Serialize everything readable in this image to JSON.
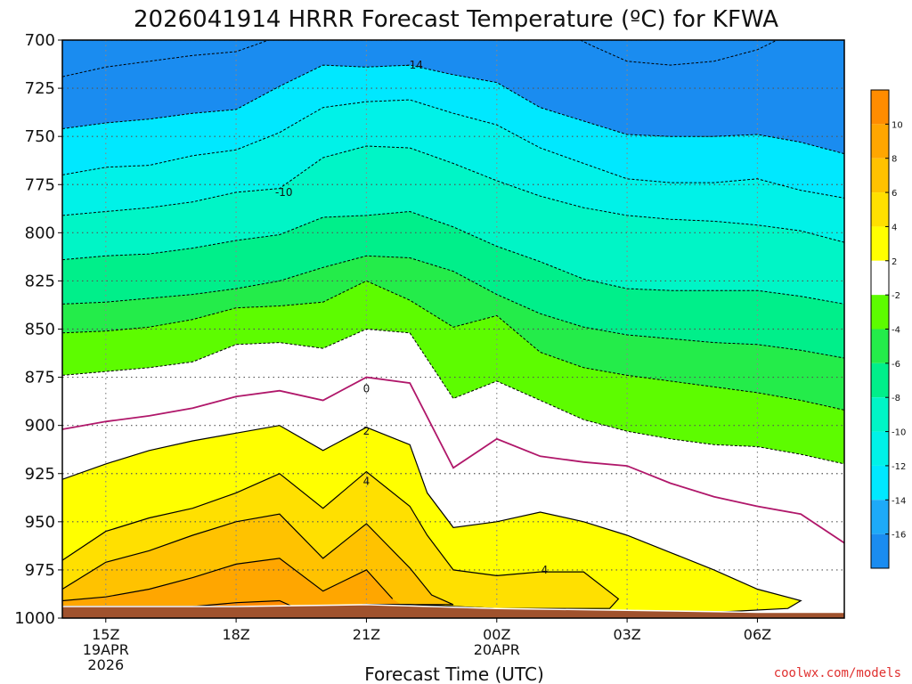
{
  "chart_data": {
    "type": "filled-contour",
    "title": "2026041914 HRRR Forecast Temperature (ºC) for KFWA",
    "xlabel": "Forecast Time (UTC)",
    "ylabel": "",
    "credit": "coolwx.com/models",
    "y_axis": {
      "range": [
        1000,
        700
      ],
      "ticks": [
        "700",
        "725",
        "750",
        "775",
        "800",
        "825",
        "850",
        "875",
        "900",
        "925",
        "950",
        "975",
        "1000"
      ]
    },
    "x_axis": {
      "range_hours": [
        0,
        18
      ],
      "ticks": [
        {
          "h": 1,
          "lines": [
            "15Z",
            "19APR",
            "2026"
          ]
        },
        {
          "h": 4,
          "lines": [
            "18Z"
          ]
        },
        {
          "h": 7,
          "lines": [
            "21Z"
          ]
        },
        {
          "h": 10,
          "lines": [
            "00Z",
            "20APR"
          ]
        },
        {
          "h": 13,
          "lines": [
            "03Z"
          ]
        },
        {
          "h": 16,
          "lines": [
            "06Z"
          ]
        }
      ],
      "grid_hours": [
        1,
        4,
        7,
        10,
        13,
        16
      ]
    },
    "grid": true,
    "colorbar": {
      "position": "right",
      "bins": [
        {
          "lo": -18,
          "hi": -16,
          "color": "#1a8cf0"
        },
        {
          "lo": -16,
          "hi": -14,
          "color": "#1eaaf8"
        },
        {
          "lo": -14,
          "hi": -12,
          "color": "#00e8ff"
        },
        {
          "lo": -12,
          "hi": -10,
          "color": "#00f2e8"
        },
        {
          "lo": -10,
          "hi": -8,
          "color": "#00f5c6"
        },
        {
          "lo": -8,
          "hi": -6,
          "color": "#00ef8a"
        },
        {
          "lo": -6,
          "hi": -4,
          "color": "#24ec4a"
        },
        {
          "lo": -4,
          "hi": -2,
          "color": "#5dfc00"
        },
        {
          "lo": -2,
          "hi": 2,
          "color": "#ffffff"
        },
        {
          "lo": 2,
          "hi": 4,
          "color": "#ffff00"
        },
        {
          "lo": 4,
          "hi": 6,
          "color": "#ffe000"
        },
        {
          "lo": 6,
          "hi": 8,
          "color": "#ffc200"
        },
        {
          "lo": 8,
          "hi": 10,
          "color": "#ffa600"
        },
        {
          "lo": 10,
          "hi": 12,
          "color": "#ff8c00"
        }
      ],
      "labels": [
        "-16",
        "-14",
        "-12",
        "-10",
        "-8",
        "-6",
        "-4",
        "-2",
        "2",
        "4",
        "6",
        "8",
        "10"
      ]
    },
    "ground_color": "#a0522d",
    "ground_top_pressure": [
      [
        0,
        994
      ],
      [
        4,
        994
      ],
      [
        7,
        993
      ],
      [
        10,
        995
      ],
      [
        13,
        996
      ],
      [
        16,
        997
      ],
      [
        18,
        997
      ]
    ],
    "contour_labels": [
      {
        "text": "-14",
        "h": 8.1,
        "p": 713
      },
      {
        "text": "-10",
        "h": 5.1,
        "p": 779
      },
      {
        "text": "0",
        "h": 7.0,
        "p": 881
      },
      {
        "text": "2",
        "h": 7.0,
        "p": 903
      },
      {
        "text": "4",
        "h": 7.0,
        "p": 929
      },
      {
        "text": "4",
        "h": 11.1,
        "p": 975
      }
    ],
    "isotherms": [
      {
        "value": -16,
        "points": [
          [
            0,
            719
          ],
          [
            1,
            714
          ],
          [
            2,
            711
          ],
          [
            3,
            708
          ],
          [
            4,
            706
          ],
          [
            5,
            698
          ],
          [
            6,
            690
          ],
          [
            7,
            690
          ]
        ]
      },
      {
        "value": -16,
        "points": [
          [
            11,
            690
          ],
          [
            12.2,
            703
          ],
          [
            13,
            711
          ],
          [
            14,
            713
          ],
          [
            15,
            711
          ],
          [
            16,
            705
          ],
          [
            17,
            694
          ],
          [
            17.3,
            690
          ]
        ]
      },
      {
        "value": -14,
        "points": [
          [
            0,
            746
          ],
          [
            1,
            743
          ],
          [
            2,
            741
          ],
          [
            3,
            738
          ],
          [
            4,
            736
          ],
          [
            5,
            724
          ],
          [
            6,
            713
          ],
          [
            7,
            714
          ],
          [
            8,
            713
          ],
          [
            9,
            718
          ],
          [
            10,
            722
          ],
          [
            11,
            735
          ],
          [
            12,
            742
          ],
          [
            13,
            749
          ],
          [
            14,
            750
          ],
          [
            15,
            750
          ],
          [
            16,
            749
          ],
          [
            17,
            753
          ],
          [
            18,
            759
          ]
        ]
      },
      {
        "value": -12,
        "points": [
          [
            0,
            770
          ],
          [
            1,
            766
          ],
          [
            2,
            765
          ],
          [
            3,
            760
          ],
          [
            4,
            757
          ],
          [
            5,
            748
          ],
          [
            6,
            735
          ],
          [
            7,
            732
          ],
          [
            8,
            731
          ],
          [
            9,
            738
          ],
          [
            10,
            744
          ],
          [
            11,
            756
          ],
          [
            12,
            764
          ],
          [
            13,
            772
          ],
          [
            14,
            774
          ],
          [
            15,
            774
          ],
          [
            16,
            772
          ],
          [
            17,
            778
          ],
          [
            18,
            782
          ]
        ]
      },
      {
        "value": -10,
        "points": [
          [
            0,
            791
          ],
          [
            1,
            789
          ],
          [
            2,
            787
          ],
          [
            3,
            784
          ],
          [
            4,
            779
          ],
          [
            5,
            777
          ],
          [
            6,
            761
          ],
          [
            7,
            755
          ],
          [
            8,
            756
          ],
          [
            9,
            764
          ],
          [
            10,
            773
          ],
          [
            11,
            781
          ],
          [
            12,
            787
          ],
          [
            13,
            791
          ],
          [
            14,
            793
          ],
          [
            15,
            794
          ],
          [
            16,
            796
          ],
          [
            17,
            799
          ],
          [
            18,
            805
          ]
        ]
      },
      {
        "value": -8,
        "points": [
          [
            0,
            814
          ],
          [
            1,
            812
          ],
          [
            2,
            811
          ],
          [
            3,
            808
          ],
          [
            4,
            804
          ],
          [
            5,
            801
          ],
          [
            6,
            792
          ],
          [
            7,
            791
          ],
          [
            8,
            789
          ],
          [
            9,
            797
          ],
          [
            10,
            807
          ],
          [
            11,
            815
          ],
          [
            12,
            824
          ],
          [
            13,
            829
          ],
          [
            14,
            830
          ],
          [
            15,
            830
          ],
          [
            16,
            830
          ],
          [
            17,
            833
          ],
          [
            18,
            837
          ]
        ]
      },
      {
        "value": -6,
        "points": [
          [
            0,
            837
          ],
          [
            1,
            836
          ],
          [
            2,
            834
          ],
          [
            3,
            832
          ],
          [
            4,
            829
          ],
          [
            5,
            825
          ],
          [
            6,
            818
          ],
          [
            7,
            812
          ],
          [
            8,
            813
          ],
          [
            9,
            820
          ],
          [
            10,
            832
          ],
          [
            11,
            842
          ],
          [
            12,
            849
          ],
          [
            13,
            853
          ],
          [
            14,
            855
          ],
          [
            15,
            857
          ],
          [
            16,
            858
          ],
          [
            17,
            861
          ],
          [
            18,
            865
          ]
        ]
      },
      {
        "value": -4,
        "points": [
          [
            0,
            852
          ],
          [
            1,
            851
          ],
          [
            2,
            849
          ],
          [
            3,
            845
          ],
          [
            4,
            839
          ],
          [
            5,
            838
          ],
          [
            6,
            836
          ],
          [
            7,
            825
          ],
          [
            8,
            835
          ],
          [
            9,
            849
          ],
          [
            10,
            843
          ],
          [
            11,
            862
          ],
          [
            12,
            870
          ],
          [
            13,
            874
          ],
          [
            14,
            877
          ],
          [
            15,
            880
          ],
          [
            16,
            883
          ],
          [
            17,
            887
          ],
          [
            18,
            892
          ]
        ]
      },
      {
        "value": -2,
        "points": [
          [
            0,
            874
          ],
          [
            1,
            872
          ],
          [
            2,
            870
          ],
          [
            3,
            867
          ],
          [
            4,
            858
          ],
          [
            5,
            857
          ],
          [
            6,
            860
          ],
          [
            7,
            850
          ],
          [
            8,
            852
          ],
          [
            9,
            886
          ],
          [
            10,
            877
          ],
          [
            11,
            887
          ],
          [
            12,
            897
          ],
          [
            13,
            903
          ],
          [
            14,
            907
          ],
          [
            15,
            910
          ],
          [
            16,
            911
          ],
          [
            17,
            915
          ],
          [
            18,
            920
          ]
        ]
      },
      {
        "value": 0,
        "points": [
          [
            0,
            902
          ],
          [
            1,
            898
          ],
          [
            2,
            895
          ],
          [
            3,
            891
          ],
          [
            4,
            885
          ],
          [
            5,
            882
          ],
          [
            6,
            887
          ],
          [
            7,
            875
          ],
          [
            8,
            878
          ],
          [
            9,
            922
          ],
          [
            10,
            907
          ],
          [
            11,
            916
          ],
          [
            12,
            919
          ],
          [
            13,
            921
          ],
          [
            14,
            930
          ],
          [
            15,
            937
          ],
          [
            16,
            942
          ],
          [
            17,
            946
          ],
          [
            18,
            961
          ]
        ]
      },
      {
        "value": 2,
        "points": [
          [
            0,
            928
          ],
          [
            1,
            920
          ],
          [
            2,
            913
          ],
          [
            3,
            908
          ],
          [
            4,
            904
          ],
          [
            5,
            900
          ],
          [
            6,
            913
          ],
          [
            7,
            901
          ],
          [
            8,
            910
          ],
          [
            8.4,
            935
          ],
          [
            9,
            953
          ],
          [
            10,
            950
          ],
          [
            11,
            945
          ],
          [
            12,
            950
          ],
          [
            13,
            957
          ],
          [
            14,
            966
          ],
          [
            15,
            975
          ],
          [
            16,
            985
          ],
          [
            17,
            991
          ],
          [
            16.7,
            995
          ],
          [
            15,
            997
          ],
          [
            13,
            996
          ],
          [
            10,
            995
          ],
          [
            9,
            994
          ],
          [
            8,
            993
          ],
          [
            7,
            993
          ],
          [
            6,
            994
          ],
          [
            4,
            994
          ],
          [
            0,
            994
          ]
        ]
      },
      {
        "value": 4,
        "points": [
          [
            0,
            970
          ],
          [
            1,
            955
          ],
          [
            2,
            948
          ],
          [
            3,
            943
          ],
          [
            4,
            935
          ],
          [
            5,
            925
          ],
          [
            6,
            943
          ],
          [
            7,
            924
          ],
          [
            8,
            942
          ],
          [
            8.4,
            957
          ],
          [
            9,
            975
          ],
          [
            10,
            978
          ],
          [
            11,
            976
          ],
          [
            12,
            976
          ],
          [
            12.8,
            990
          ],
          [
            12.6,
            995
          ],
          [
            10,
            995
          ],
          [
            9,
            994
          ],
          [
            8,
            993
          ],
          [
            7,
            993
          ],
          [
            6,
            994
          ],
          [
            4,
            994
          ],
          [
            0,
            994
          ]
        ]
      },
      {
        "value": 6,
        "points": [
          [
            0,
            985
          ],
          [
            1,
            971
          ],
          [
            2,
            965
          ],
          [
            3,
            957
          ],
          [
            4,
            950
          ],
          [
            5,
            946
          ],
          [
            6,
            969
          ],
          [
            7,
            951
          ],
          [
            8,
            974
          ],
          [
            8.5,
            988
          ],
          [
            9,
            993
          ],
          [
            8,
            993
          ],
          [
            7,
            993
          ],
          [
            6,
            994
          ],
          [
            4,
            994
          ],
          [
            0,
            994
          ]
        ]
      },
      {
        "value": 8,
        "points": [
          [
            0,
            991
          ],
          [
            1,
            989
          ],
          [
            2,
            985
          ],
          [
            3,
            979
          ],
          [
            4,
            972
          ],
          [
            5,
            969
          ],
          [
            6,
            986
          ],
          [
            7,
            975
          ],
          [
            7.6,
            990
          ],
          [
            7.8,
            993
          ],
          [
            7,
            993
          ],
          [
            6,
            994
          ],
          [
            4,
            994
          ],
          [
            0,
            994
          ]
        ]
      },
      {
        "value": 10,
        "points": [
          [
            3,
            994
          ],
          [
            4,
            992
          ],
          [
            5,
            991
          ],
          [
            5.3,
            994
          ],
          [
            4,
            994
          ],
          [
            3,
            994
          ]
        ]
      }
    ]
  }
}
